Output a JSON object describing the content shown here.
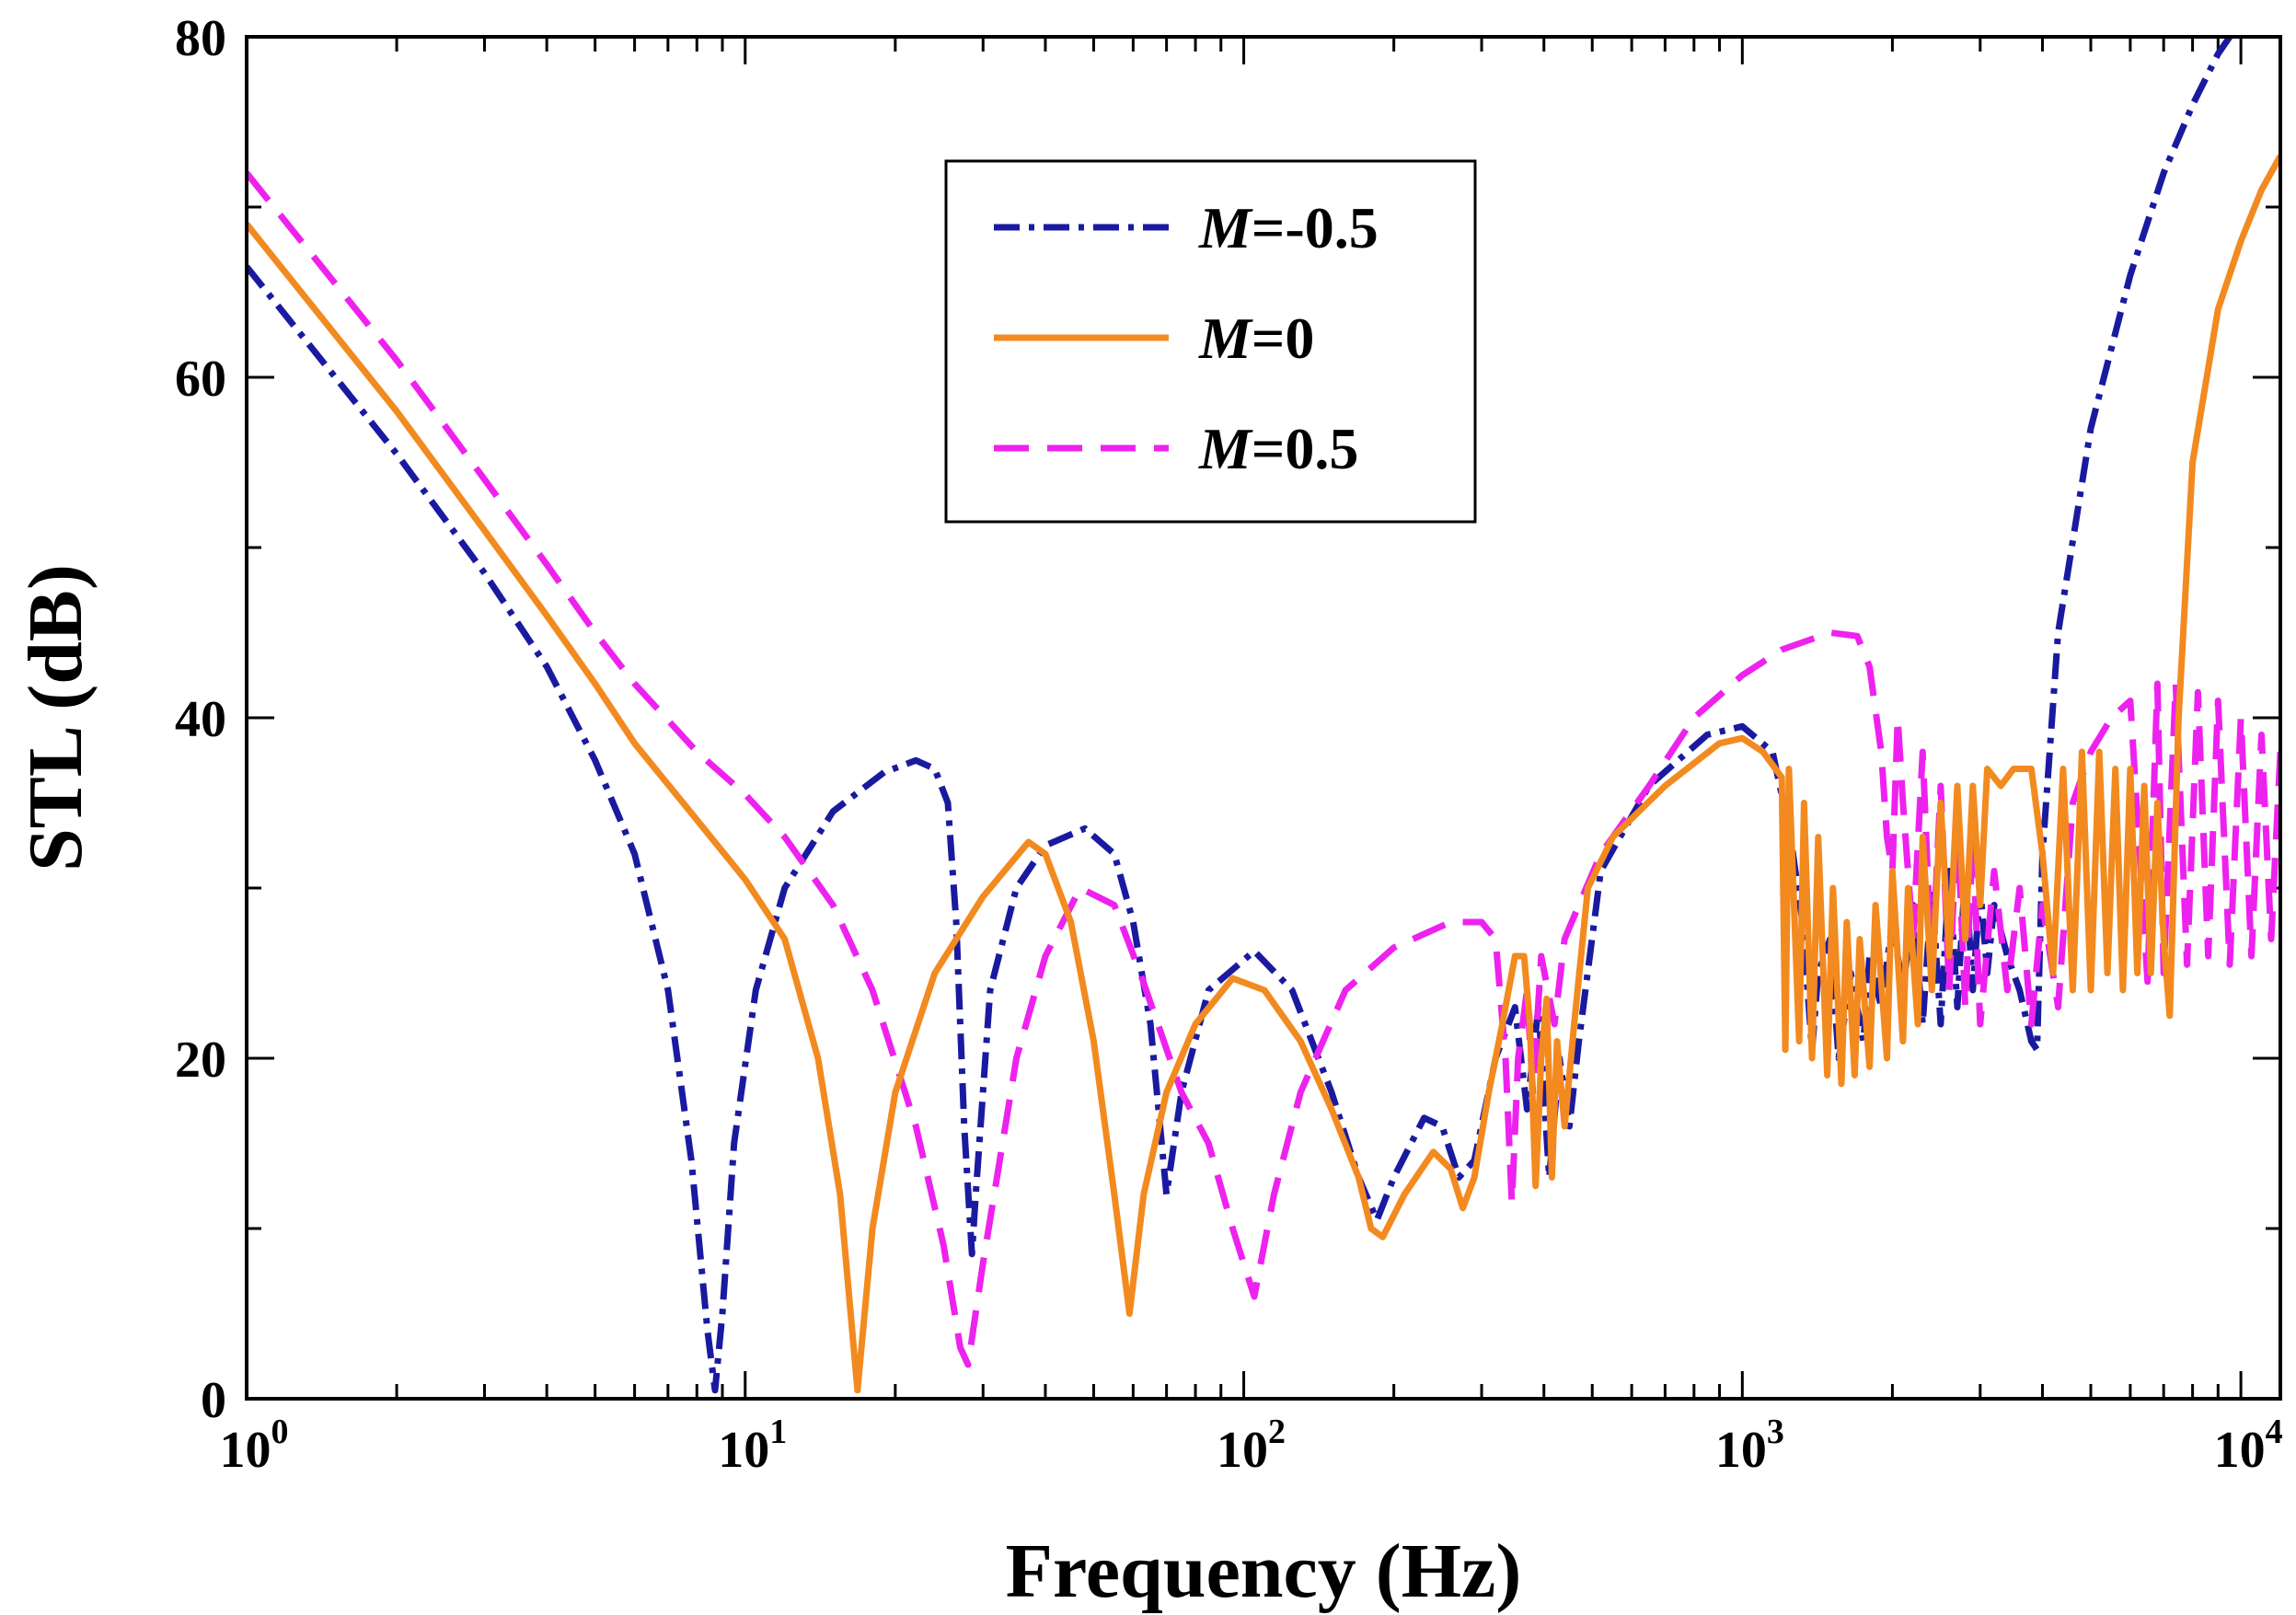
{
  "chart_data": {
    "type": "line",
    "xlabel": "Frequency (Hz)",
    "ylabel": "STL (dB)",
    "xscale": "log",
    "xlim": [
      1,
      12000
    ],
    "ylim": [
      0,
      80
    ],
    "x_ticks": [
      {
        "value": 1,
        "base": "10",
        "exp": "0"
      },
      {
        "value": 10,
        "base": "10",
        "exp": "1"
      },
      {
        "value": 100,
        "base": "10",
        "exp": "2"
      },
      {
        "value": 1000,
        "base": "10",
        "exp": "3"
      },
      {
        "value": 10000,
        "base": "10",
        "exp": "4"
      }
    ],
    "y_ticks": [
      0,
      20,
      40,
      60,
      80
    ],
    "legend_position": "top-center",
    "series": [
      {
        "name": "M=-0.5",
        "label_m": "M",
        "label_rest": "=-0.5",
        "color": "#1a1aa0",
        "dash": "28 10 6 10",
        "points": [
          [
            1,
            66.5
          ],
          [
            2,
            55.5
          ],
          [
            3,
            48.5
          ],
          [
            4,
            43
          ],
          [
            5,
            37.5
          ],
          [
            6,
            32
          ],
          [
            7,
            24
          ],
          [
            7.8,
            14
          ],
          [
            8.4,
            4
          ],
          [
            8.7,
            0.5
          ],
          [
            9,
            5
          ],
          [
            9.5,
            15
          ],
          [
            10.5,
            24
          ],
          [
            12,
            30
          ],
          [
            15,
            34.5
          ],
          [
            19,
            36.8
          ],
          [
            22,
            37.5
          ],
          [
            24,
            37
          ],
          [
            25.5,
            35
          ],
          [
            26.5,
            28
          ],
          [
            27.5,
            16
          ],
          [
            28.5,
            8.5
          ],
          [
            29,
            12
          ],
          [
            31,
            24
          ],
          [
            35,
            30
          ],
          [
            40,
            32.5
          ],
          [
            48,
            33.5
          ],
          [
            55,
            32
          ],
          [
            60,
            28
          ],
          [
            65,
            22
          ],
          [
            70,
            12
          ],
          [
            75,
            18
          ],
          [
            85,
            24
          ],
          [
            105,
            26.3
          ],
          [
            125,
            24
          ],
          [
            150,
            18
          ],
          [
            170,
            13
          ],
          [
            185,
            10.5
          ],
          [
            200,
            13
          ],
          [
            230,
            16.5
          ],
          [
            250,
            16
          ],
          [
            270,
            13
          ],
          [
            290,
            14
          ],
          [
            320,
            20
          ],
          [
            350,
            23
          ],
          [
            370,
            17
          ],
          [
            390,
            23
          ],
          [
            410,
            13
          ],
          [
            430,
            20
          ],
          [
            450,
            16
          ],
          [
            470,
            21
          ],
          [
            520,
            31
          ],
          [
            650,
            36
          ],
          [
            850,
            39
          ],
          [
            1000,
            39.5
          ],
          [
            1150,
            38
          ],
          [
            1250,
            33
          ],
          [
            1320,
            28
          ],
          [
            1380,
            20.5
          ],
          [
            1420,
            25
          ],
          [
            1500,
            27
          ],
          [
            1560,
            20
          ],
          [
            1650,
            25
          ],
          [
            1750,
            21
          ],
          [
            1800,
            26
          ],
          [
            1900,
            23
          ],
          [
            2000,
            28
          ],
          [
            2100,
            24
          ],
          [
            2200,
            29
          ],
          [
            2300,
            22
          ],
          [
            2400,
            30
          ],
          [
            2500,
            22
          ],
          [
            2600,
            31
          ],
          [
            2700,
            23
          ],
          [
            2800,
            31
          ],
          [
            2900,
            24
          ],
          [
            3000,
            30
          ],
          [
            3100,
            25
          ],
          [
            3200,
            29
          ],
          [
            3400,
            26
          ],
          [
            3600,
            24
          ],
          [
            3800,
            21
          ],
          [
            3900,
            20.5
          ],
          [
            4000,
            32
          ],
          [
            4300,
            45
          ],
          [
            5000,
            57
          ],
          [
            6000,
            66
          ],
          [
            7000,
            72
          ],
          [
            8000,
            76
          ],
          [
            9000,
            79
          ],
          [
            9500,
            80
          ]
        ]
      },
      {
        "name": "M=0",
        "label_m": "M",
        "label_rest": "=0",
        "color": "#f28a20",
        "dash": "",
        "points": [
          [
            1,
            69
          ],
          [
            2,
            58
          ],
          [
            3,
            51
          ],
          [
            4,
            46
          ],
          [
            5,
            42
          ],
          [
            6,
            38.5
          ],
          [
            8,
            34
          ],
          [
            10,
            30.5
          ],
          [
            12,
            27
          ],
          [
            14,
            20
          ],
          [
            15.5,
            12
          ],
          [
            16.8,
            0.5
          ],
          [
            18,
            10
          ],
          [
            20,
            18
          ],
          [
            24,
            25
          ],
          [
            30,
            29.5
          ],
          [
            37,
            32.7
          ],
          [
            40,
            32
          ],
          [
            45,
            28
          ],
          [
            50,
            21
          ],
          [
            55,
            12
          ],
          [
            59,
            5
          ],
          [
            63,
            12
          ],
          [
            70,
            18
          ],
          [
            80,
            22
          ],
          [
            95,
            24.7
          ],
          [
            110,
            24
          ],
          [
            130,
            21
          ],
          [
            150,
            17
          ],
          [
            170,
            13
          ],
          [
            180,
            10
          ],
          [
            190,
            9.5
          ],
          [
            210,
            12
          ],
          [
            240,
            14.5
          ],
          [
            260,
            13.5
          ],
          [
            275,
            11.2
          ],
          [
            290,
            13
          ],
          [
            310,
            18
          ],
          [
            330,
            22
          ],
          [
            350,
            26
          ],
          [
            365,
            26
          ],
          [
            375,
            22
          ],
          [
            385,
            12.5
          ],
          [
            395,
            20
          ],
          [
            405,
            23.5
          ],
          [
            415,
            13
          ],
          [
            425,
            21
          ],
          [
            440,
            16
          ],
          [
            460,
            22
          ],
          [
            490,
            30
          ],
          [
            550,
            33
          ],
          [
            700,
            36
          ],
          [
            900,
            38.5
          ],
          [
            1000,
            38.8
          ],
          [
            1100,
            38
          ],
          [
            1200,
            36.5
          ],
          [
            1220,
            20.5
          ],
          [
            1240,
            37
          ],
          [
            1300,
            21
          ],
          [
            1330,
            35
          ],
          [
            1380,
            20
          ],
          [
            1420,
            33
          ],
          [
            1480,
            19
          ],
          [
            1520,
            30
          ],
          [
            1580,
            18.5
          ],
          [
            1620,
            28
          ],
          [
            1680,
            19
          ],
          [
            1720,
            27
          ],
          [
            1800,
            19.5
          ],
          [
            1850,
            29
          ],
          [
            1950,
            20
          ],
          [
            2000,
            31
          ],
          [
            2100,
            21
          ],
          [
            2150,
            30
          ],
          [
            2250,
            22
          ],
          [
            2300,
            33
          ],
          [
            2400,
            24
          ],
          [
            2500,
            35
          ],
          [
            2600,
            26
          ],
          [
            2700,
            36
          ],
          [
            2800,
            27
          ],
          [
            2900,
            36
          ],
          [
            3000,
            29
          ],
          [
            3100,
            37
          ],
          [
            3300,
            36
          ],
          [
            3500,
            37
          ],
          [
            3800,
            37
          ],
          [
            4000,
            32
          ],
          [
            4200,
            25
          ],
          [
            4400,
            37
          ],
          [
            4600,
            24
          ],
          [
            4800,
            38
          ],
          [
            5000,
            24
          ],
          [
            5200,
            38
          ],
          [
            5400,
            25
          ],
          [
            5600,
            37
          ],
          [
            5800,
            24
          ],
          [
            6000,
            37
          ],
          [
            6200,
            25
          ],
          [
            6400,
            36
          ],
          [
            6600,
            25
          ],
          [
            6800,
            35
          ],
          [
            7000,
            27
          ],
          [
            7200,
            22.5
          ],
          [
            7500,
            40
          ],
          [
            8000,
            55
          ],
          [
            9000,
            64
          ],
          [
            10000,
            68
          ],
          [
            11000,
            71
          ],
          [
            12000,
            73
          ]
        ]
      },
      {
        "name": "M=0.5",
        "label_m": "M",
        "label_rest": "=0.5",
        "color": "#ee22ee",
        "dash": "38 20",
        "points": [
          [
            1,
            72
          ],
          [
            2,
            61
          ],
          [
            3,
            54
          ],
          [
            4,
            49
          ],
          [
            5,
            45
          ],
          [
            6,
            42
          ],
          [
            8,
            38
          ],
          [
            10,
            35.5
          ],
          [
            12,
            33
          ],
          [
            15,
            29
          ],
          [
            18,
            24
          ],
          [
            22,
            16
          ],
          [
            25,
            9
          ],
          [
            27,
            3
          ],
          [
            28,
            2
          ],
          [
            30,
            8
          ],
          [
            35,
            20
          ],
          [
            40,
            26
          ],
          [
            47,
            30
          ],
          [
            55,
            29
          ],
          [
            62,
            25
          ],
          [
            75,
            18
          ],
          [
            85,
            15
          ],
          [
            95,
            10
          ],
          [
            105,
            6
          ],
          [
            115,
            12
          ],
          [
            130,
            18
          ],
          [
            160,
            24
          ],
          [
            200,
            26.5
          ],
          [
            260,
            28
          ],
          [
            300,
            28
          ],
          [
            320,
            27
          ],
          [
            335,
            20
          ],
          [
            345,
            11.5
          ],
          [
            355,
            20
          ],
          [
            370,
            24
          ],
          [
            380,
            18
          ],
          [
            395,
            26
          ],
          [
            420,
            22
          ],
          [
            440,
            27
          ],
          [
            470,
            29
          ],
          [
            520,
            32
          ],
          [
            650,
            36
          ],
          [
            800,
            40
          ],
          [
            1000,
            42.5
          ],
          [
            1200,
            44
          ],
          [
            1500,
            45
          ],
          [
            1700,
            44.8
          ],
          [
            1800,
            43
          ],
          [
            1900,
            38
          ],
          [
            1950,
            33
          ],
          [
            2000,
            31
          ],
          [
            2050,
            40
          ],
          [
            2100,
            35
          ],
          [
            2200,
            27
          ],
          [
            2300,
            38
          ],
          [
            2400,
            25
          ],
          [
            2500,
            36
          ],
          [
            2600,
            24
          ],
          [
            2700,
            34
          ],
          [
            2800,
            23
          ],
          [
            2900,
            33
          ],
          [
            3000,
            22
          ],
          [
            3200,
            31
          ],
          [
            3400,
            24
          ],
          [
            3600,
            30
          ],
          [
            3800,
            22
          ],
          [
            4000,
            29
          ],
          [
            4300,
            23
          ],
          [
            4600,
            35
          ],
          [
            5000,
            38
          ],
          [
            5500,
            40
          ],
          [
            6000,
            41
          ],
          [
            6500,
            24.5
          ],
          [
            6800,
            42
          ],
          [
            7000,
            25
          ],
          [
            7400,
            42
          ],
          [
            7800,
            25.5
          ],
          [
            8200,
            41.5
          ],
          [
            8600,
            26
          ],
          [
            9000,
            41
          ],
          [
            9500,
            25.5
          ],
          [
            10000,
            40
          ],
          [
            10500,
            26
          ],
          [
            11000,
            39
          ],
          [
            11500,
            27
          ],
          [
            12000,
            38
          ]
        ]
      }
    ]
  }
}
